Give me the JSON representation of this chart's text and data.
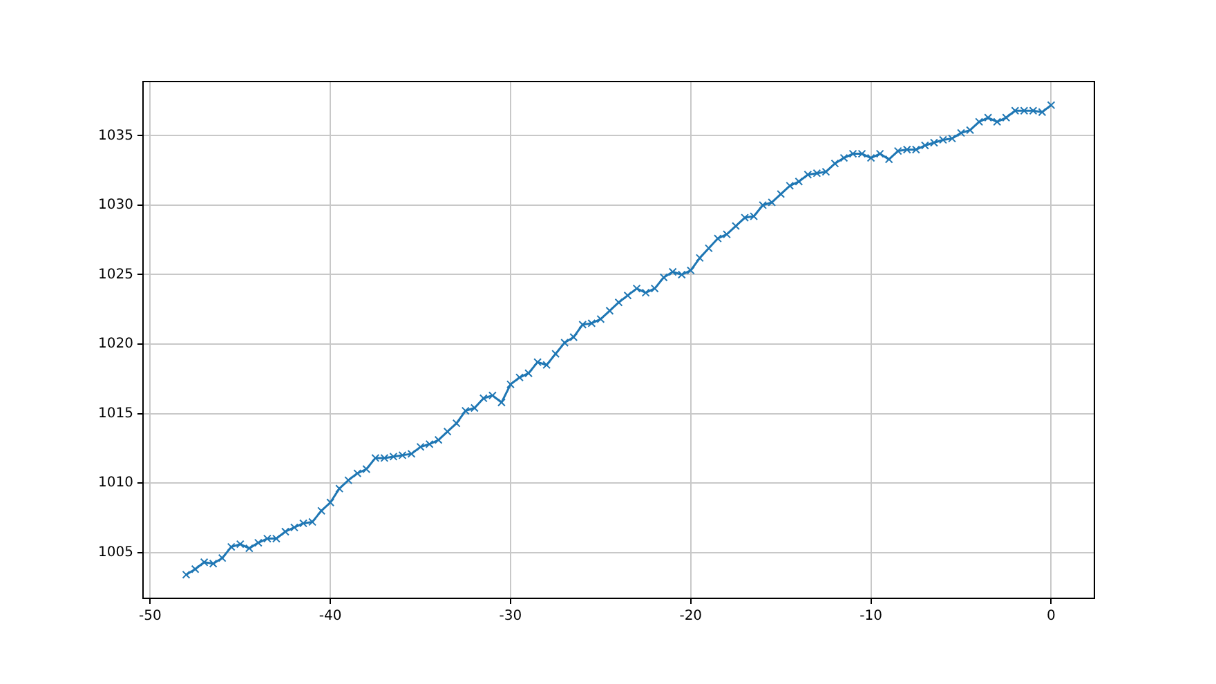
{
  "chart_data": {
    "type": "line",
    "x": [
      -48,
      -47.5,
      -47,
      -46.5,
      -46,
      -45.5,
      -45,
      -44.5,
      -44,
      -43.5,
      -43,
      -42.5,
      -42,
      -41.5,
      -41,
      -40.5,
      -40,
      -39.5,
      -39,
      -38.5,
      -38,
      -37.5,
      -37,
      -36.5,
      -36,
      -35.5,
      -35,
      -34.5,
      -34,
      -33.5,
      -33,
      -32.5,
      -32,
      -31.5,
      -31,
      -30.5,
      -30,
      -29.5,
      -29,
      -28.5,
      -28,
      -27.5,
      -27,
      -26.5,
      -26,
      -25.5,
      -25,
      -24.5,
      -24,
      -23.5,
      -23,
      -22.5,
      -22,
      -21.5,
      -21,
      -20.5,
      -20,
      -19.5,
      -19,
      -18.5,
      -18,
      -17.5,
      -17,
      -16.5,
      -16,
      -15.5,
      -15,
      -14.5,
      -14,
      -13.5,
      -13,
      -12.5,
      -12,
      -11.5,
      -11,
      -10.5,
      -10,
      -9.5,
      -9,
      -8.5,
      -8,
      -7.5,
      -7,
      -6.5,
      -6,
      -5.5,
      -5,
      -4.5,
      -4,
      -3.5,
      -3,
      -2.5,
      -2,
      -1.5,
      -1,
      -0.5,
      0
    ],
    "series": [
      {
        "color": "#1f77b4",
        "values": [
          1003.4,
          1003.8,
          1004.3,
          1004.2,
          1004.6,
          1005.4,
          1005.6,
          1005.3,
          1005.7,
          1006.0,
          1006.0,
          1006.5,
          1006.8,
          1007.1,
          1007.2,
          1008.0,
          1008.6,
          1009.6,
          1010.2,
          1010.7,
          1011.0,
          1011.8,
          1011.8,
          1011.9,
          1012.0,
          1012.1,
          1012.6,
          1012.8,
          1013.1,
          1013.7,
          1014.3,
          1015.2,
          1015.4,
          1016.1,
          1016.3,
          1015.8,
          1017.1,
          1017.6,
          1017.9,
          1018.7,
          1018.5,
          1019.3,
          1020.1,
          1020.5,
          1021.4,
          1021.5,
          1021.8,
          1022.4,
          1023.0,
          1023.5,
          1024.0,
          1023.7,
          1024.0,
          1024.8,
          1025.2,
          1025.0,
          1025.3,
          1026.2,
          1026.9,
          1027.6,
          1027.9,
          1028.5,
          1029.1,
          1029.2,
          1030.0,
          1030.2,
          1030.8,
          1031.4,
          1031.7,
          1032.2,
          1032.3,
          1032.4,
          1033.0,
          1033.4,
          1033.7,
          1033.7,
          1033.4,
          1033.7,
          1033.3,
          1033.9,
          1034.0,
          1034.0,
          1034.3,
          1034.5,
          1034.7,
          1034.8,
          1035.2,
          1035.4,
          1036.0,
          1036.3,
          1036.0,
          1036.3,
          1036.8,
          1036.8,
          1036.8,
          1036.7,
          1037.2
        ]
      }
    ],
    "xlim": [
      -50.4,
      2.4
    ],
    "xticks": [
      -50,
      -40,
      -30,
      -20,
      -10,
      0
    ],
    "ylim": [
      1001.7,
      1038.9
    ],
    "yticks": [
      1005,
      1010,
      1015,
      1020,
      1025,
      1030,
      1035
    ],
    "grid": true,
    "marker": "cross",
    "line_style": "solid",
    "legend": false
  }
}
